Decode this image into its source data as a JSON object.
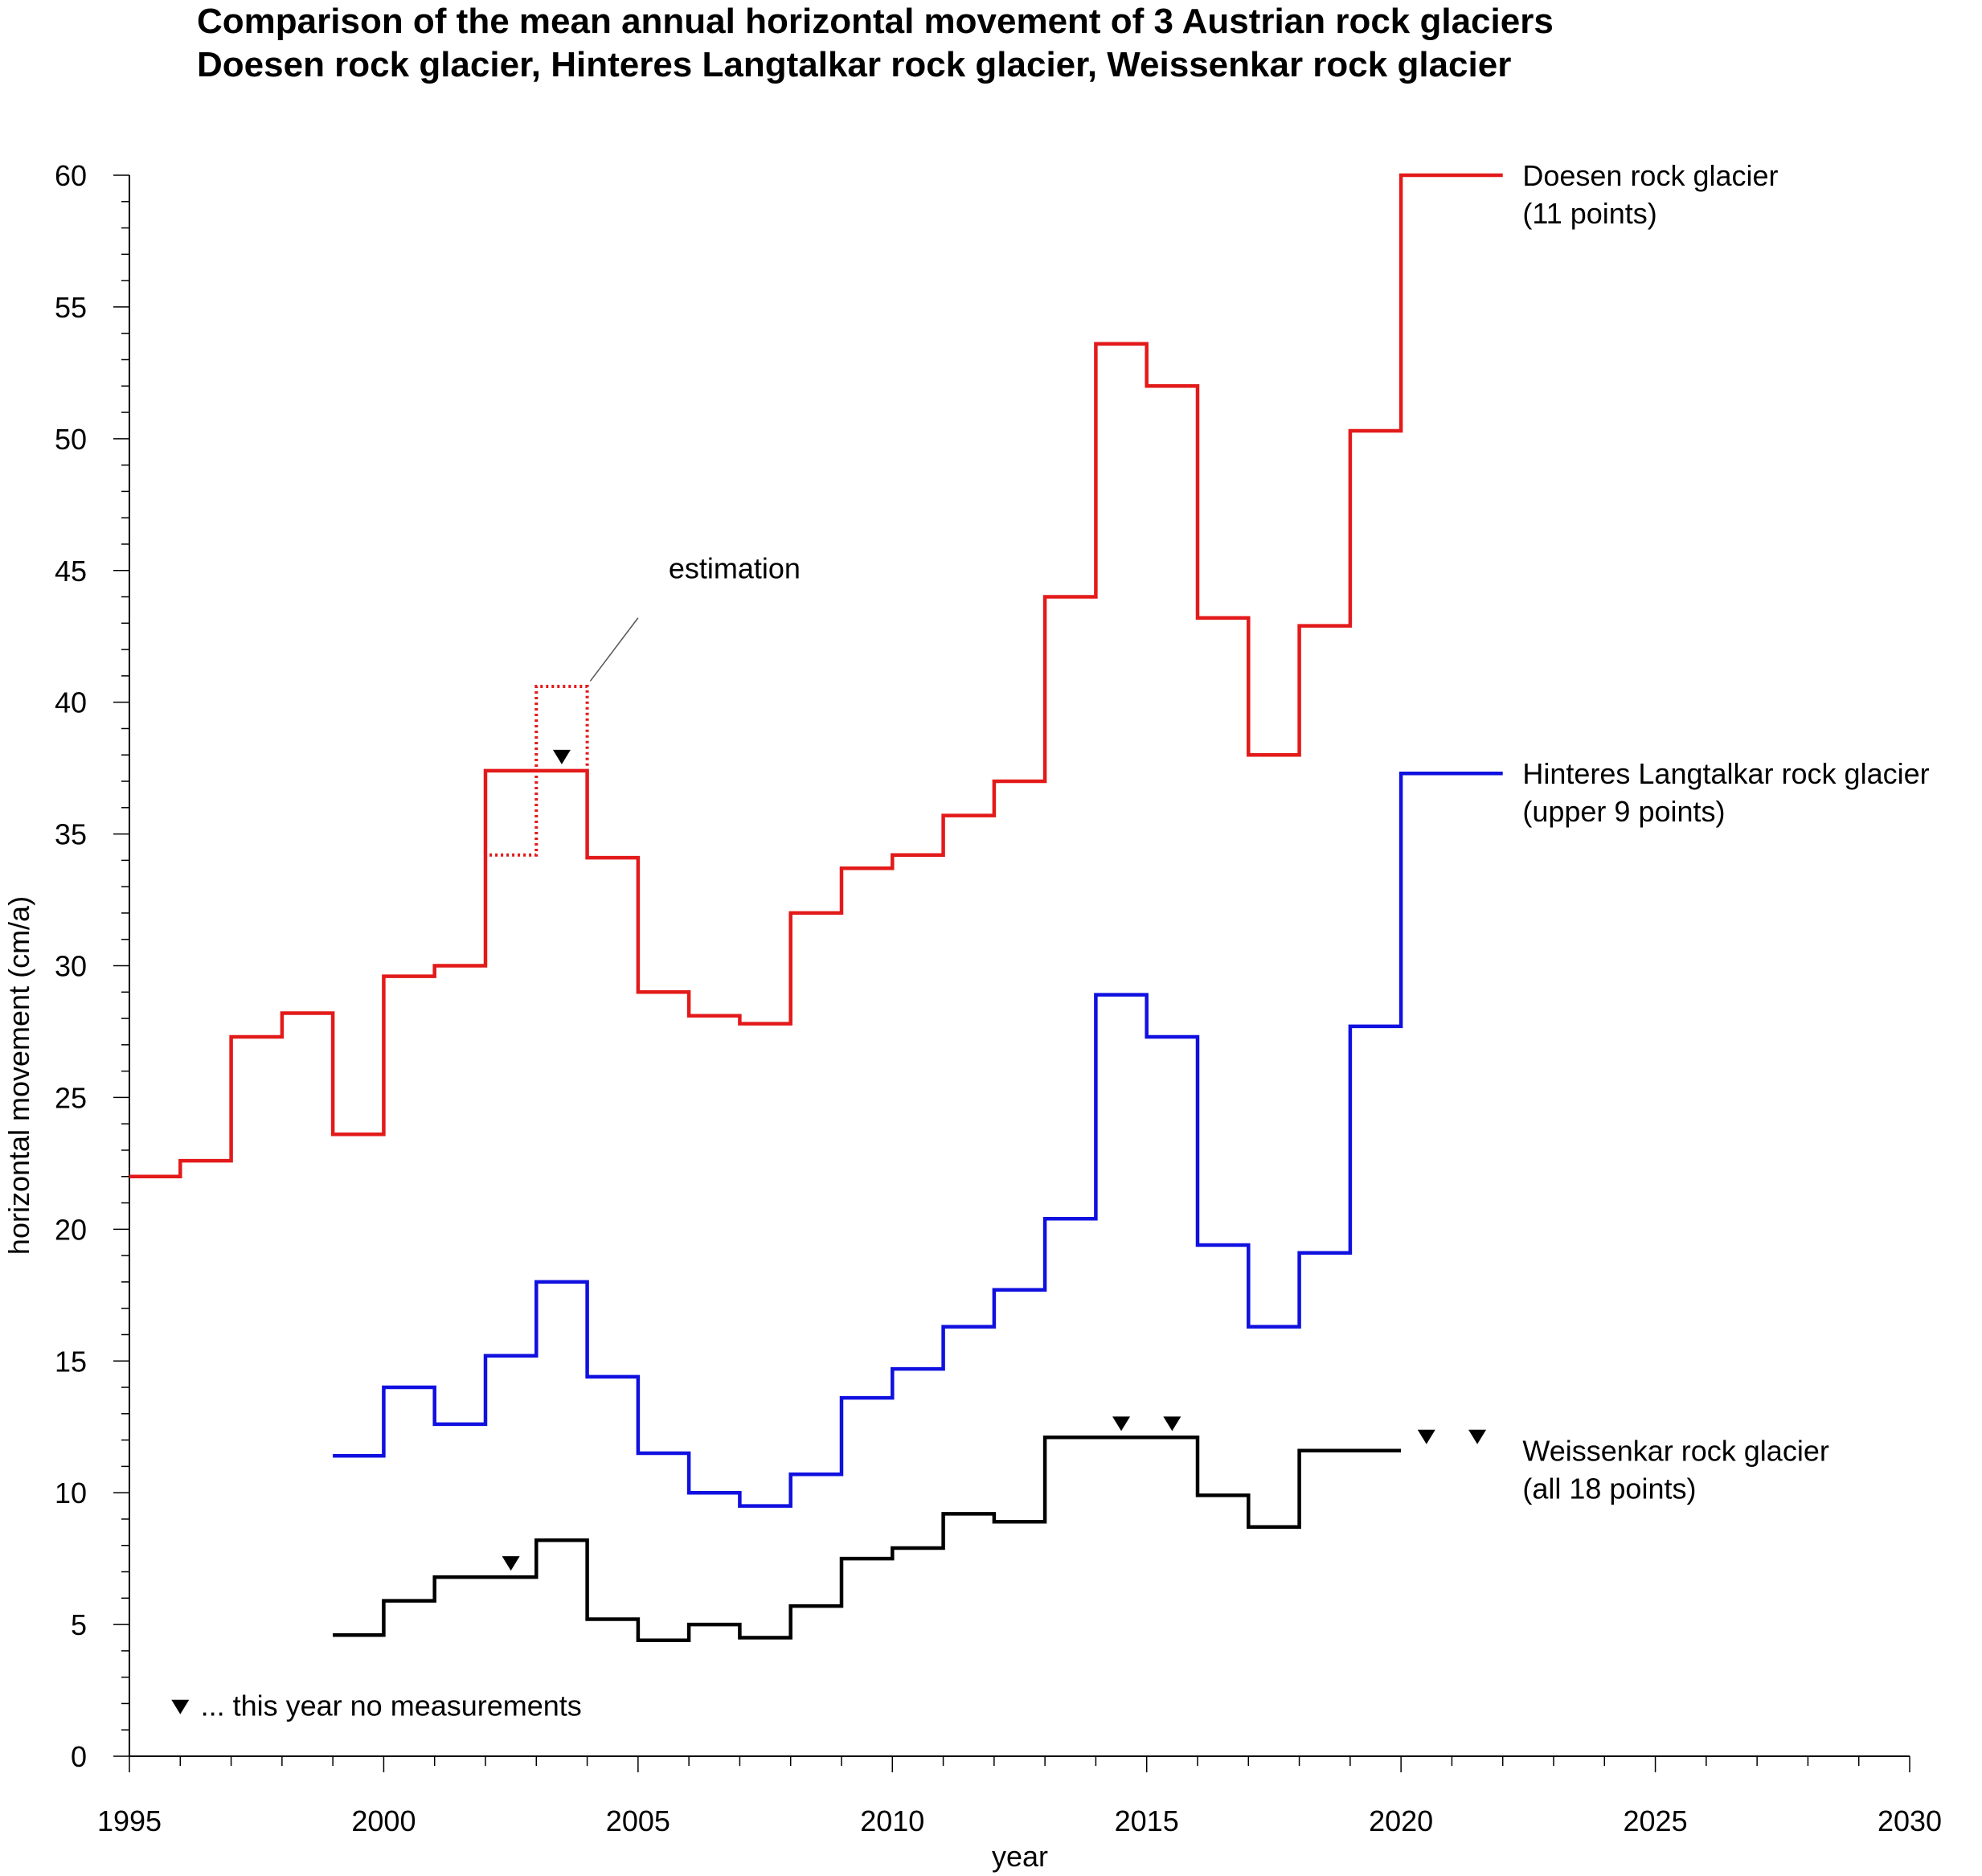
{
  "chart_data": {
    "type": "line",
    "step": true,
    "title": "Comparison of the mean annual horizontal movement of 3 Austrian rock glaciers",
    "subtitle": "Doesen rock glacier, Hinteres Langtalkar rock glacier, Weissenkar rock glacier",
    "xlabel": "year",
    "ylabel": "horizontal movement (cm/a)",
    "xlim": [
      1995,
      2030
    ],
    "ylim": [
      0,
      60
    ],
    "xticks": [
      1995,
      2000,
      2005,
      2010,
      2015,
      2020,
      2025,
      2030
    ],
    "yticks": [
      0,
      5,
      10,
      15,
      20,
      25,
      30,
      35,
      40,
      45,
      50,
      55,
      60
    ],
    "grid": false,
    "series": [
      {
        "name": "Doesen rock glacier",
        "note": "(11 points)",
        "color": "#e31a1a",
        "x": [
          1996,
          1997,
          1998,
          1999,
          2000,
          2001,
          2002,
          2003,
          2004,
          2005,
          2006,
          2007,
          2008,
          2009,
          2010,
          2011,
          2012,
          2013,
          2014,
          2015,
          2016,
          2017,
          2018,
          2019,
          2020,
          2021,
          2022
        ],
        "values": [
          22.0,
          22.6,
          27.3,
          28.2,
          23.6,
          29.6,
          30.0,
          37.4,
          37.4,
          34.1,
          29.0,
          28.1,
          27.8,
          32.0,
          33.7,
          34.2,
          35.7,
          37.0,
          44.0,
          53.6,
          52.0,
          43.2,
          38.0,
          42.9,
          50.3,
          60.0,
          60.0
        ]
      },
      {
        "name": "Hinteres Langtalkar rock glacier",
        "note": "(upper 9 points)",
        "color": "#1010e0",
        "x": [
          2000,
          2001,
          2002,
          2003,
          2004,
          2005,
          2006,
          2007,
          2008,
          2009,
          2010,
          2011,
          2012,
          2013,
          2014,
          2015,
          2016,
          2017,
          2018,
          2019,
          2020,
          2021,
          2022
        ],
        "values": [
          11.4,
          14.0,
          12.6,
          15.2,
          18.0,
          14.4,
          11.5,
          10.0,
          9.5,
          10.7,
          13.6,
          14.7,
          16.3,
          17.7,
          20.4,
          28.9,
          27.3,
          19.4,
          16.3,
          19.1,
          27.7,
          37.3,
          37.3
        ]
      },
      {
        "name": "Weissenkar rock glacier",
        "note": "(all 18 points)",
        "color": "#000000",
        "x": [
          2000,
          2001,
          2002,
          2003,
          2004,
          2005,
          2006,
          2007,
          2008,
          2009,
          2010,
          2011,
          2012,
          2013,
          2014,
          2015,
          2016,
          2017,
          2018,
          2019,
          2020
        ],
        "values": [
          4.6,
          5.9,
          6.8,
          6.8,
          8.2,
          5.2,
          4.4,
          5.0,
          4.5,
          5.7,
          7.5,
          7.9,
          9.2,
          8.9,
          12.1,
          12.1,
          12.1,
          9.9,
          8.7,
          11.6,
          11.6
        ]
      }
    ],
    "estimation": {
      "label": "estimation",
      "color": "#e31a1a",
      "x": [
        2003,
        2004,
        2005
      ],
      "values": [
        34.2,
        40.6,
        40.6
      ]
    },
    "no_measurement_markers": [
      {
        "series": "Doesen rock glacier",
        "x": 2004,
        "y": 37.4
      },
      {
        "series": "Weissenkar rock glacier",
        "x": 2003,
        "y": 6.8
      },
      {
        "series": "Weissenkar rock glacier",
        "x": 2015,
        "y": 12.1
      },
      {
        "series": "Weissenkar rock glacier",
        "x": 2016,
        "y": 12.1
      },
      {
        "series": "Weissenkar rock glacier",
        "x": 2021,
        "y": 11.6
      },
      {
        "series": "Weissenkar rock glacier",
        "x": 2022,
        "y": 11.6
      }
    ],
    "legend_note": "... this year no measurements"
  }
}
